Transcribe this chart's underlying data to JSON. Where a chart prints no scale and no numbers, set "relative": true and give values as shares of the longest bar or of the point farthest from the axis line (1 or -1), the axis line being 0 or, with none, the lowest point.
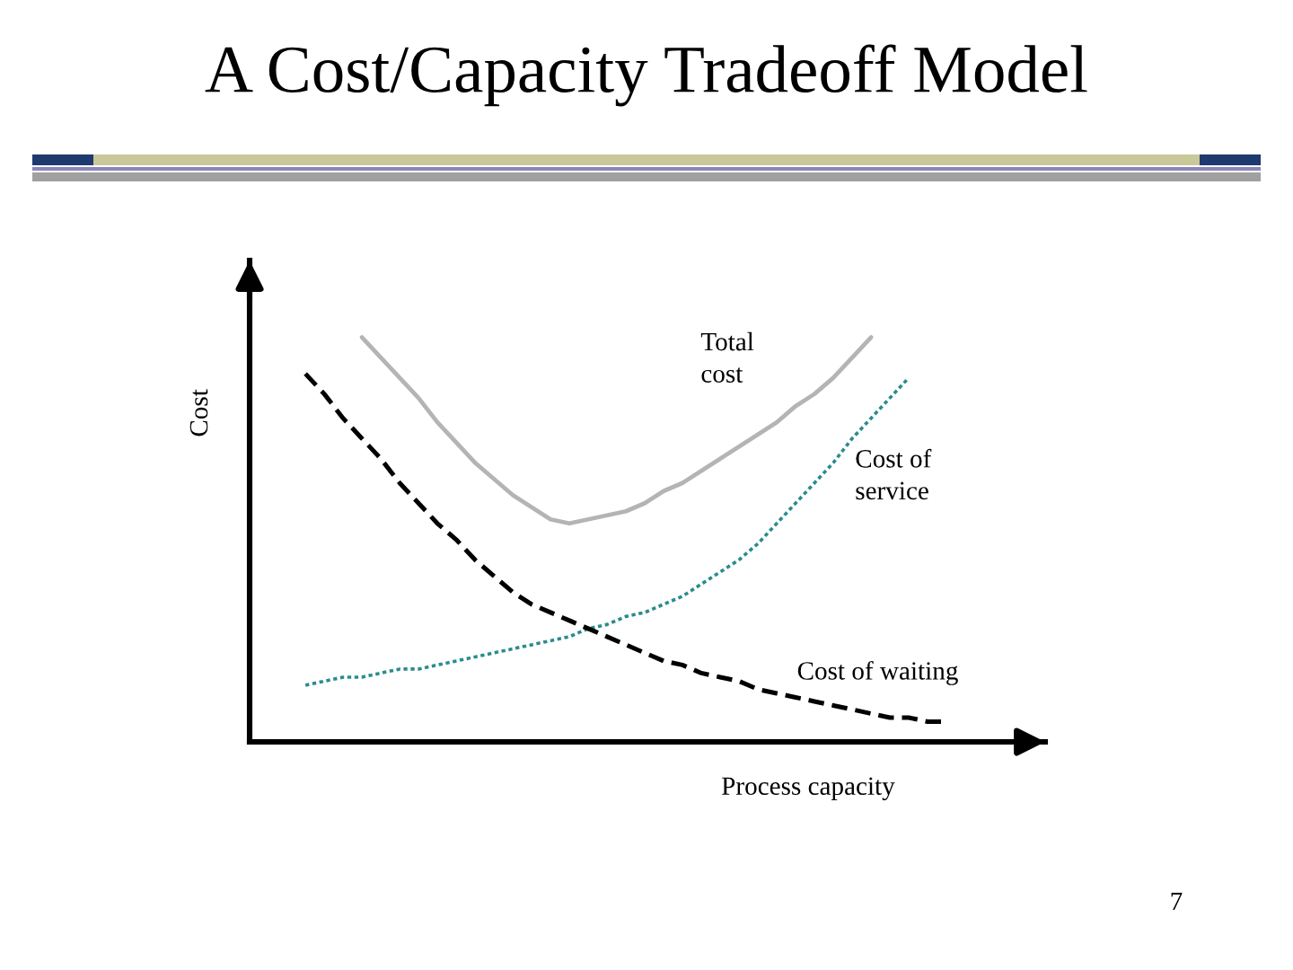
{
  "chart_data": {
    "type": "line",
    "title": "A Cost/Capacity Tradeoff Model",
    "xlabel": "Process capacity",
    "ylabel": "Cost",
    "relative": true,
    "categories": [
      null,
      null,
      null,
      null,
      null,
      null,
      null,
      null,
      null,
      null,
      null,
      null,
      null,
      null,
      null,
      null,
      null,
      null,
      null,
      null,
      null,
      null,
      null,
      null,
      null,
      null,
      null,
      null,
      null,
      null,
      null,
      null,
      null,
      null,
      null
    ],
    "series": [
      {
        "name": "Total\ncost",
        "color": "#b4b4b4",
        "line_style": "solid",
        "values": [
          null,
          null,
          null,
          1.0,
          0.95,
          0.9,
          0.85,
          0.79,
          0.74,
          0.69,
          0.65,
          0.61,
          0.58,
          0.55,
          0.54,
          0.55,
          0.56,
          0.57,
          0.59,
          0.62,
          0.64,
          0.67,
          0.7,
          0.73,
          0.76,
          0.79,
          0.83,
          0.86,
          0.9,
          0.95,
          1.0,
          null,
          null,
          null,
          null
        ]
      },
      {
        "name": "Cost of\nservice",
        "color": "#2a8c8c",
        "line_style": "dotted",
        "values": [
          0.14,
          0.15,
          0.16,
          0.16,
          0.17,
          0.18,
          0.18,
          0.19,
          0.2,
          0.21,
          0.22,
          0.23,
          0.24,
          0.25,
          0.26,
          0.28,
          0.29,
          0.31,
          0.32,
          0.34,
          0.36,
          0.39,
          0.42,
          0.45,
          0.49,
          0.54,
          0.59,
          0.64,
          0.69,
          0.75,
          0.8,
          0.85,
          0.9,
          null,
          null
        ]
      },
      {
        "name": "Cost of waiting",
        "color": "#000000",
        "line_style": "dashed",
        "values": [
          0.91,
          0.86,
          0.8,
          0.75,
          0.7,
          0.64,
          0.59,
          0.54,
          0.5,
          0.45,
          0.41,
          0.37,
          0.34,
          0.32,
          0.3,
          0.28,
          0.26,
          0.24,
          0.22,
          0.2,
          0.19,
          0.17,
          0.16,
          0.15,
          0.13,
          0.12,
          0.11,
          0.1,
          0.09,
          0.08,
          0.07,
          0.06,
          0.06,
          0.05,
          0.05
        ]
      }
    ],
    "grid": false,
    "legend": false,
    "tick_labels": false,
    "marker": "none",
    "annotations": [
      "7"
    ]
  }
}
